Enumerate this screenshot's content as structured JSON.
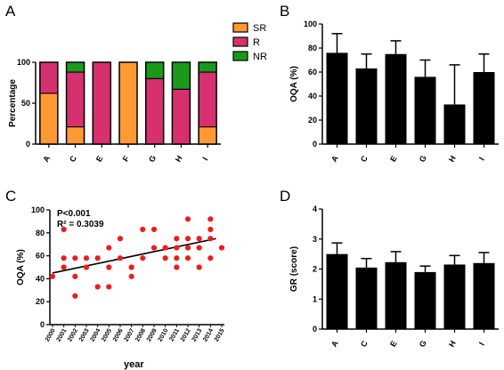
{
  "panels": [
    "A",
    "B",
    "C",
    "D"
  ],
  "chart_data": [
    {
      "panel": "A",
      "type": "bar",
      "stacked": true,
      "categories": [
        "A",
        "C",
        "E",
        "F",
        "G",
        "H",
        "I"
      ],
      "ylabel": "Percentage",
      "ylim": [
        0,
        100
      ],
      "yticks": [
        0,
        50,
        100
      ],
      "legend": "right",
      "series": [
        {
          "name": "SR",
          "color": "#ff9933",
          "values": [
            62,
            21,
            0,
            100,
            0,
            0,
            21
          ]
        },
        {
          "name": "R",
          "color": "#d6306e",
          "values": [
            38,
            67,
            100,
            0,
            80,
            67,
            67
          ]
        },
        {
          "name": "NR",
          "color": "#1a9a1a",
          "values": [
            0,
            12,
            0,
            0,
            20,
            33,
            12
          ]
        }
      ]
    },
    {
      "panel": "B",
      "type": "bar",
      "categories": [
        "A",
        "C",
        "E",
        "G",
        "H",
        "I"
      ],
      "values": [
        76,
        63,
        75,
        56,
        33,
        60
      ],
      "errors": [
        16,
        12,
        11,
        14,
        33,
        15
      ],
      "ylabel": "OQA (%)",
      "ylim": [
        0,
        100
      ],
      "yticks": [
        0,
        20,
        40,
        60,
        80,
        100
      ],
      "color": "#000000"
    },
    {
      "panel": "C",
      "type": "scatter",
      "xlabel": "year",
      "ylabel": "OQA (%)",
      "xlim": [
        2000,
        2015
      ],
      "ylim": [
        0,
        100
      ],
      "xticks": [
        "2000",
        "2001",
        "2002",
        "2003",
        "2004",
        "2005",
        "2006",
        "2007",
        "2008",
        "2009",
        "2010",
        "2011",
        "2012",
        "2013",
        "2014",
        "2015"
      ],
      "yticks": [
        0,
        20,
        40,
        60,
        80,
        100
      ],
      "annotations": [
        "P<0.001",
        "R² = 0.3039"
      ],
      "point_color": "#ee1c1c",
      "points": [
        [
          2000,
          42
        ],
        [
          2001,
          83
        ],
        [
          2001,
          58
        ],
        [
          2001,
          50
        ],
        [
          2002,
          58
        ],
        [
          2002,
          42
        ],
        [
          2002,
          25
        ],
        [
          2003,
          58
        ],
        [
          2003,
          50
        ],
        [
          2004,
          58
        ],
        [
          2004,
          33
        ],
        [
          2005,
          67
        ],
        [
          2005,
          50
        ],
        [
          2005,
          33
        ],
        [
          2006,
          75
        ],
        [
          2006,
          58
        ],
        [
          2007,
          50
        ],
        [
          2007,
          42
        ],
        [
          2008,
          83
        ],
        [
          2008,
          58
        ],
        [
          2009,
          83
        ],
        [
          2009,
          67
        ],
        [
          2010,
          67
        ],
        [
          2010,
          58
        ],
        [
          2011,
          75
        ],
        [
          2011,
          67
        ],
        [
          2011,
          58
        ],
        [
          2011,
          50
        ],
        [
          2012,
          92
        ],
        [
          2012,
          75
        ],
        [
          2012,
          67
        ],
        [
          2012,
          58
        ],
        [
          2013,
          75
        ],
        [
          2013,
          67
        ],
        [
          2013,
          50
        ],
        [
          2014,
          92
        ],
        [
          2014,
          83
        ],
        [
          2014,
          75
        ],
        [
          2014,
          58
        ],
        [
          2015,
          67
        ]
      ],
      "trendline": [
        [
          2000,
          45
        ],
        [
          2014.5,
          75
        ]
      ]
    },
    {
      "panel": "D",
      "type": "bar",
      "categories": [
        "A",
        "C",
        "E",
        "G",
        "H",
        "I"
      ],
      "values": [
        2.5,
        2.05,
        2.23,
        1.9,
        2.15,
        2.2
      ],
      "errors": [
        0.37,
        0.3,
        0.35,
        0.2,
        0.3,
        0.35
      ],
      "ylabel": "GR (score)",
      "ylim": [
        0,
        4
      ],
      "yticks": [
        0,
        1,
        2,
        3,
        4
      ],
      "color": "#000000"
    }
  ]
}
